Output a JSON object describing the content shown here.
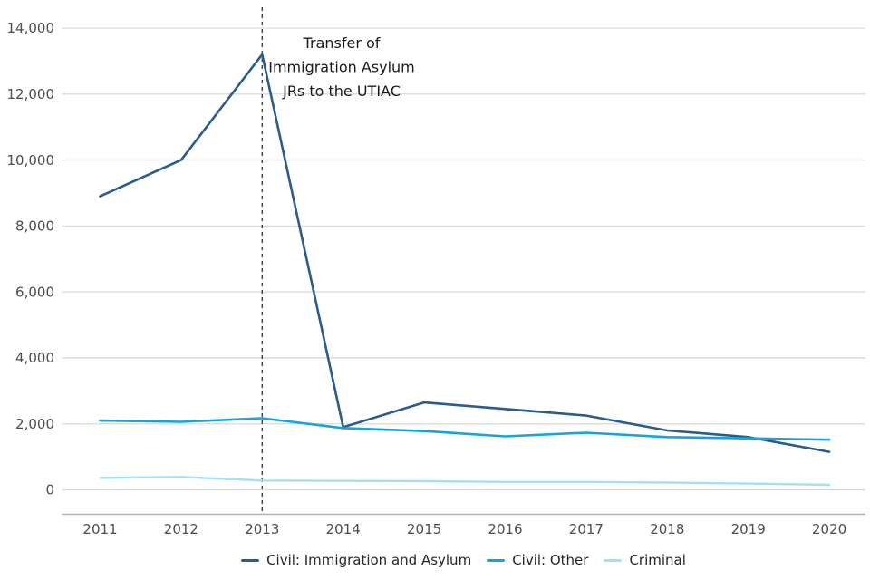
{
  "chart_data": {
    "type": "line",
    "x": [
      "2011",
      "2012",
      "2013",
      "2014",
      "2015",
      "2016",
      "2017",
      "2018",
      "2019",
      "2020"
    ],
    "series": [
      {
        "name": "Civil: Immigration and Asylum",
        "color": "#2B5C8C",
        "values": [
          8900,
          10000,
          13200,
          1900,
          2650,
          2450,
          2250,
          1800,
          1600,
          1150
        ]
      },
      {
        "name": "Civil: Other",
        "color": "#18A3DC",
        "values": [
          2100,
          2060,
          2170,
          1870,
          1780,
          1620,
          1730,
          1600,
          1560,
          1520
        ]
      },
      {
        "name": "Criminal",
        "color": "#A5DFF3",
        "values": [
          360,
          390,
          280,
          270,
          260,
          240,
          240,
          220,
          190,
          150
        ]
      }
    ],
    "ylim": [
      0,
      14000
    ],
    "yticks": [
      {
        "value": 0,
        "label": "0"
      },
      {
        "value": 2000,
        "label": "2,000"
      },
      {
        "value": 4000,
        "label": "4,000"
      },
      {
        "value": 6000,
        "label": "6,000"
      },
      {
        "value": 8000,
        "label": "8,000"
      },
      {
        "value": 10000,
        "label": "10,000"
      },
      {
        "value": 12000,
        "label": "12,000"
      },
      {
        "value": 14000,
        "label": "14,000"
      }
    ],
    "grid": "horizontal",
    "gridline_color": "#D9D9D9",
    "axis_line_color": "#B3B3B3",
    "tick_label_color": "#4D4D4D",
    "legend_position": "bottom-center",
    "annotation": {
      "text_lines": [
        "Transfer of",
        "Immigration Asylum",
        "JRs to the UTIAC"
      ],
      "at_x": "2013",
      "line_style": "dashed",
      "line_color": "#404040",
      "text_color": "#1A1A1A"
    }
  }
}
